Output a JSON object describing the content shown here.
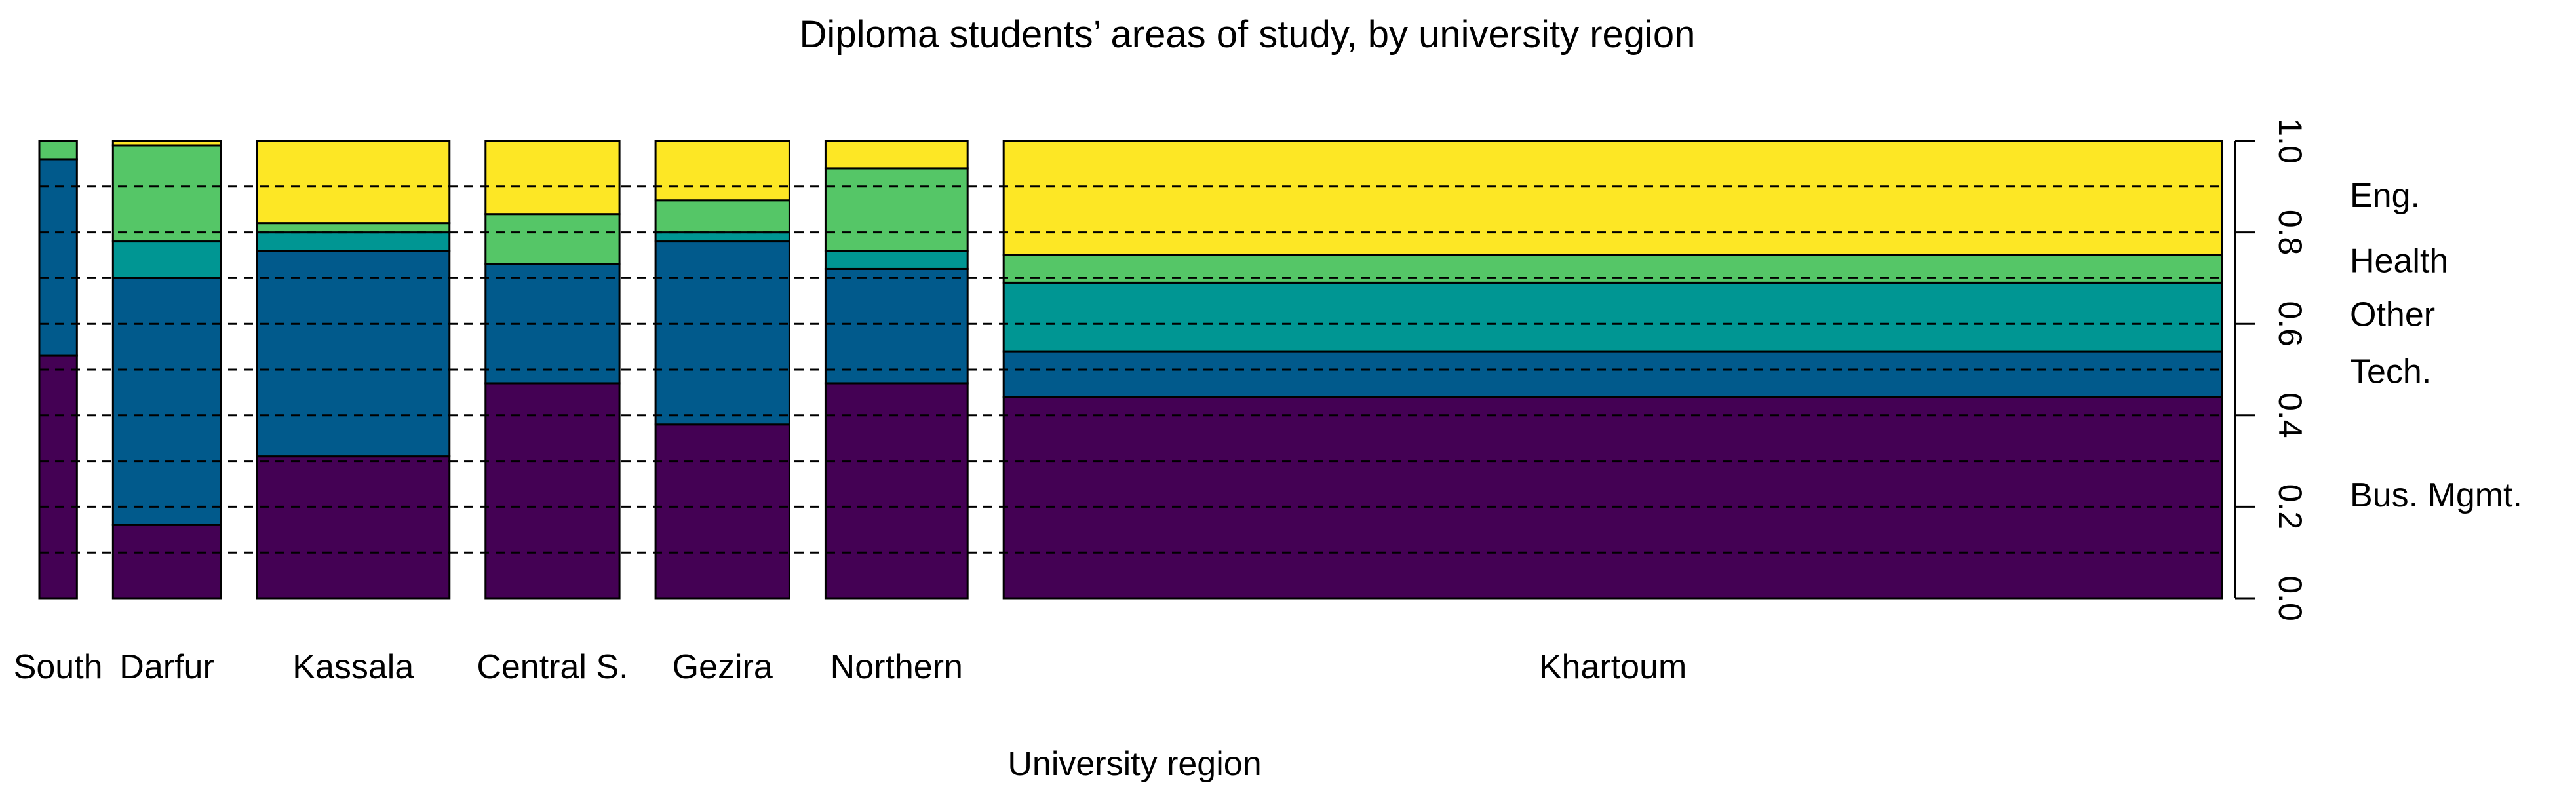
{
  "chart_data": {
    "type": "bar",
    "subtype": "spineplot",
    "title": "Diploma students’ areas of study, by university region",
    "xlabel": "University region",
    "ylabel": "",
    "ylim": [
      0,
      1
    ],
    "yticks": [
      "0.0",
      "0.2",
      "0.4",
      "0.6",
      "0.8",
      "1.0"
    ],
    "y_axis_side": "right",
    "gridlines": [
      0.1,
      0.2,
      0.3,
      0.4,
      0.5,
      0.6,
      0.7,
      0.8,
      0.9
    ],
    "categories": [
      "South",
      "Darfur",
      "Kassala",
      "Central S.",
      "Gezira",
      "Northern",
      "Khartoum"
    ],
    "relative_widths": [
      0.023,
      0.066,
      0.118,
      0.082,
      0.082,
      0.087,
      0.746
    ],
    "series": [
      {
        "name": "Bus. Mgmt.",
        "color": "#440154",
        "values": [
          0.53,
          0.16,
          0.31,
          0.47,
          0.38,
          0.47,
          0.44
        ]
      },
      {
        "name": "Tech.",
        "color": "#015A8C",
        "values": [
          0.43,
          0.54,
          0.45,
          0.26,
          0.4,
          0.25,
          0.1
        ]
      },
      {
        "name": "Other",
        "color": "#009693",
        "values": [
          0.0,
          0.08,
          0.04,
          0.0,
          0.02,
          0.04,
          0.15
        ]
      },
      {
        "name": "Health",
        "color": "#55C667",
        "values": [
          0.04,
          0.21,
          0.02,
          0.11,
          0.07,
          0.18,
          0.06
        ]
      },
      {
        "name": "Eng.",
        "color": "#FDE725",
        "values": [
          0.0,
          0.01,
          0.18,
          0.16,
          0.13,
          0.06,
          0.25
        ]
      }
    ],
    "grid": true,
    "legend_position": "right"
  }
}
